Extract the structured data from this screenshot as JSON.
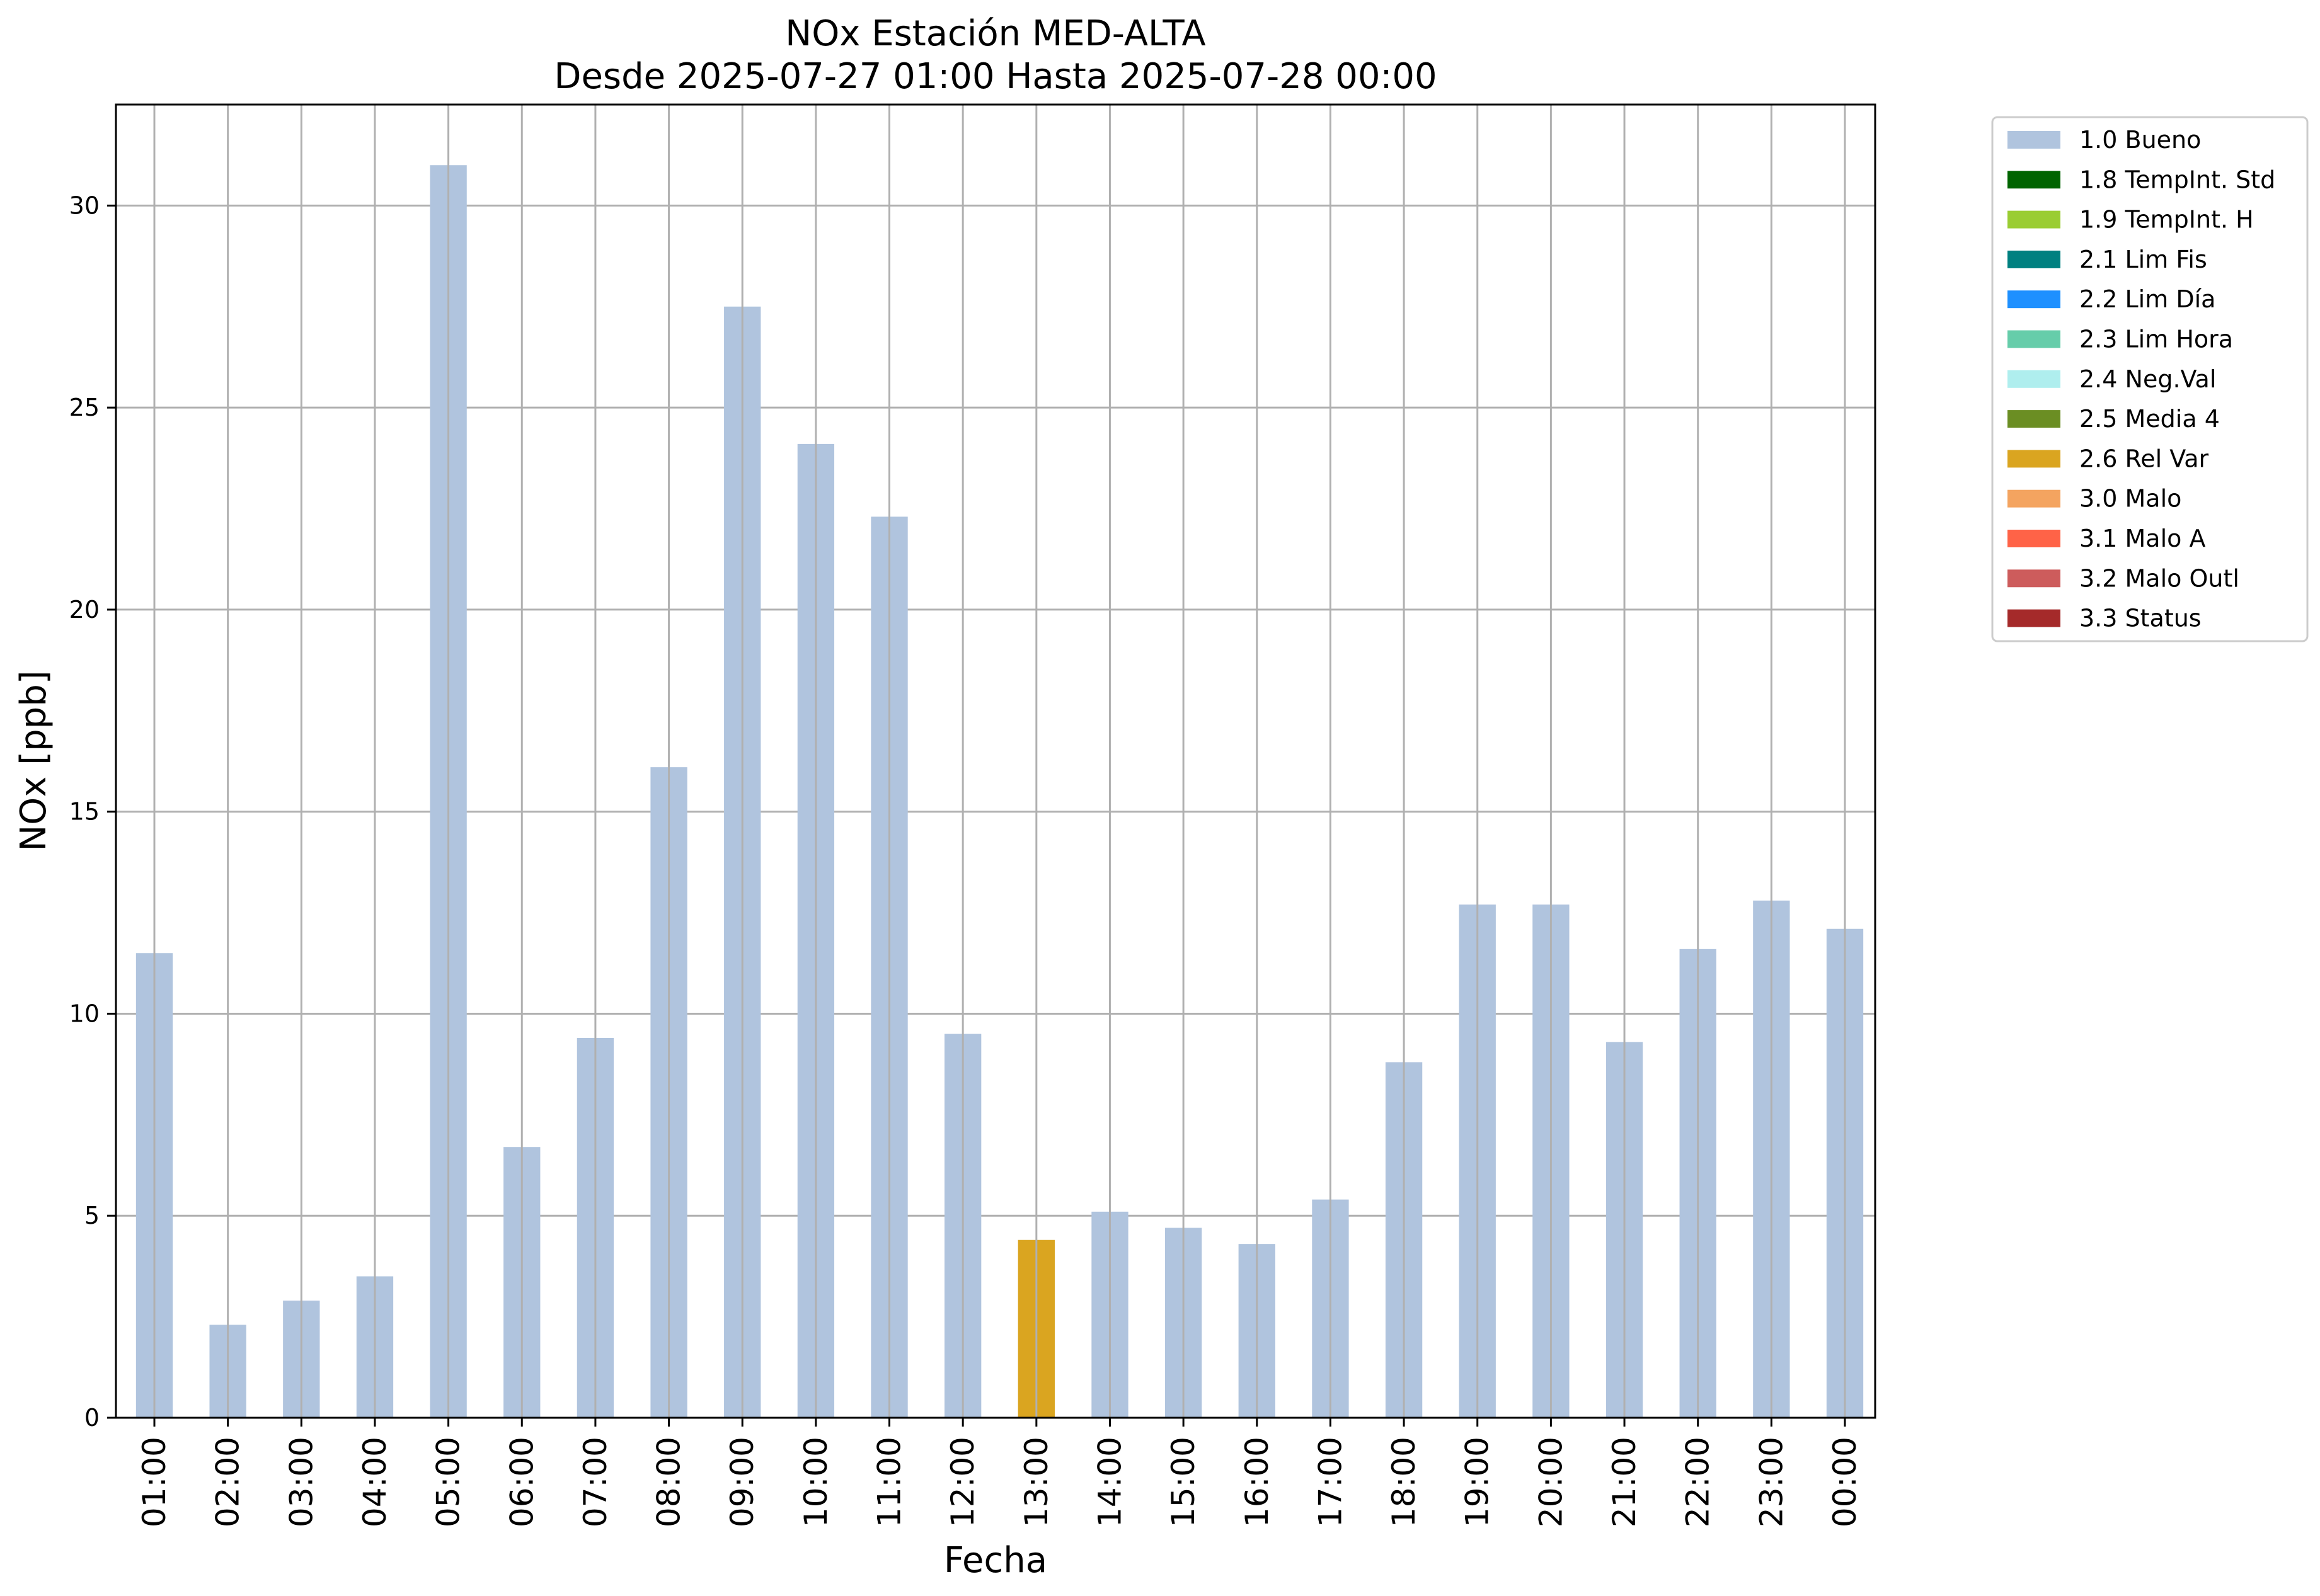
{
  "chart_data": {
    "type": "bar",
    "title": "NOx Estación MED-ALTA",
    "subtitle": "Desde 2025-07-27 01:00 Hasta 2025-07-28 00:00",
    "xlabel": "Fecha",
    "ylabel": "NOx [ppb]",
    "ylim": [
      0,
      32.5
    ],
    "yticks": [
      "0",
      "5",
      "10",
      "15",
      "20",
      "25",
      "30"
    ],
    "grid": true,
    "legend_position": "outside-top-right",
    "categories": [
      "01:00",
      "02:00",
      "03:00",
      "04:00",
      "05:00",
      "06:00",
      "07:00",
      "08:00",
      "09:00",
      "10:00",
      "11:00",
      "12:00",
      "13:00",
      "14:00",
      "15:00",
      "16:00",
      "17:00",
      "18:00",
      "19:00",
      "20:00",
      "21:00",
      "22:00",
      "23:00",
      "00:00"
    ],
    "values": [
      11.5,
      2.3,
      2.9,
      3.5,
      31.0,
      6.7,
      9.4,
      16.1,
      27.5,
      24.1,
      22.3,
      9.5,
      4.4,
      5.1,
      4.7,
      4.3,
      5.4,
      8.8,
      12.7,
      12.7,
      9.3,
      11.6,
      12.8,
      12.1
    ],
    "flags": [
      "1.0 Bueno",
      "1.0 Bueno",
      "1.0 Bueno",
      "1.0 Bueno",
      "1.0 Bueno",
      "1.0 Bueno",
      "1.0 Bueno",
      "1.0 Bueno",
      "1.0 Bueno",
      "1.0 Bueno",
      "1.0 Bueno",
      "1.0 Bueno",
      "2.6 Rel Var",
      "1.0 Bueno",
      "1.0 Bueno",
      "1.0 Bueno",
      "1.0 Bueno",
      "1.0 Bueno",
      "1.0 Bueno",
      "1.0 Bueno",
      "1.0 Bueno",
      "1.0 Bueno",
      "1.0 Bueno",
      "1.0 Bueno"
    ],
    "legend": [
      {
        "label": "1.0 Bueno",
        "color": "#b0c4de"
      },
      {
        "label": "1.8 TempInt. Std",
        "color": "#006400"
      },
      {
        "label": "1.9 TempInt. H",
        "color": "#9acd32"
      },
      {
        "label": "2.1 Lim Fis",
        "color": "#008080"
      },
      {
        "label": "2.2 Lim Día",
        "color": "#1e90ff"
      },
      {
        "label": "2.3 Lim Hora",
        "color": "#66cdaa"
      },
      {
        "label": "2.4 Neg.Val",
        "color": "#afeeee"
      },
      {
        "label": "2.5 Media 4",
        "color": "#6b8e23"
      },
      {
        "label": "2.6 Rel Var",
        "color": "#daa520"
      },
      {
        "label": "3.0 Malo",
        "color": "#f4a460"
      },
      {
        "label": "3.1 Malo A",
        "color": "#ff6347"
      },
      {
        "label": "3.2 Malo Outl",
        "color": "#cd5c5c"
      },
      {
        "label": "3.3 Status",
        "color": "#a52a2a"
      }
    ]
  },
  "colors": {
    "grid": "#b0b0b0",
    "axis": "#000000"
  }
}
